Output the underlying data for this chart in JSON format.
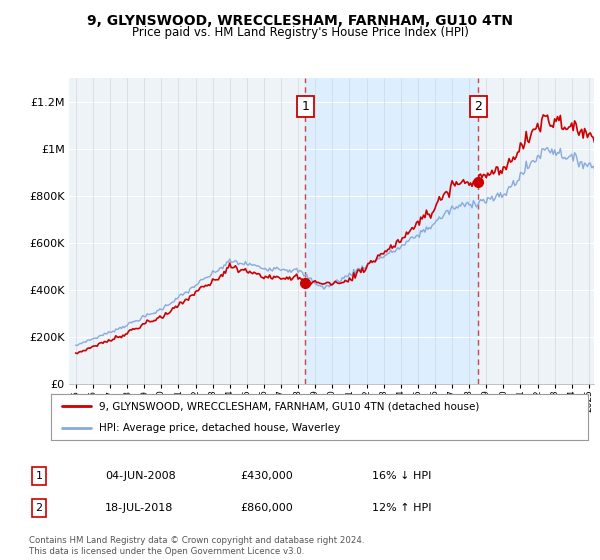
{
  "title": "9, GLYNSWOOD, WRECCLESHAM, FARNHAM, GU10 4TN",
  "subtitle": "Price paid vs. HM Land Registry's House Price Index (HPI)",
  "ylabel_ticks": [
    0,
    200000,
    400000,
    600000,
    800000,
    1000000,
    1200000
  ],
  "ylabel_labels": [
    "£0",
    "£200K",
    "£400K",
    "£600K",
    "£800K",
    "£1M",
    "£1.2M"
  ],
  "ylim": [
    0,
    1300000
  ],
  "xlim_start": 1994.6,
  "xlim_end": 2025.3,
  "sale1_year": 2008.42,
  "sale1_price": 430000,
  "sale2_year": 2018.54,
  "sale2_price": 860000,
  "shade_color": "#ddeeff",
  "line_property_color": "#cc0000",
  "line_hpi_color": "#88aadd",
  "dashed_color": "#cc4444",
  "legend_property": "9, GLYNSWOOD, WRECCLESHAM, FARNHAM, GU10 4TN (detached house)",
  "legend_hpi": "HPI: Average price, detached house, Waverley",
  "annotation1_label": "1",
  "annotation1_date": "04-JUN-2008",
  "annotation1_price": "£430,000",
  "annotation1_hpi": "16% ↓ HPI",
  "annotation2_label": "2",
  "annotation2_date": "18-JUL-2018",
  "annotation2_price": "£860,000",
  "annotation2_hpi": "12% ↑ HPI",
  "footer": "Contains HM Land Registry data © Crown copyright and database right 2024.\nThis data is licensed under the Open Government Licence v3.0.",
  "background_color": "#ffffff",
  "plot_bg_color": "#eef3f8"
}
